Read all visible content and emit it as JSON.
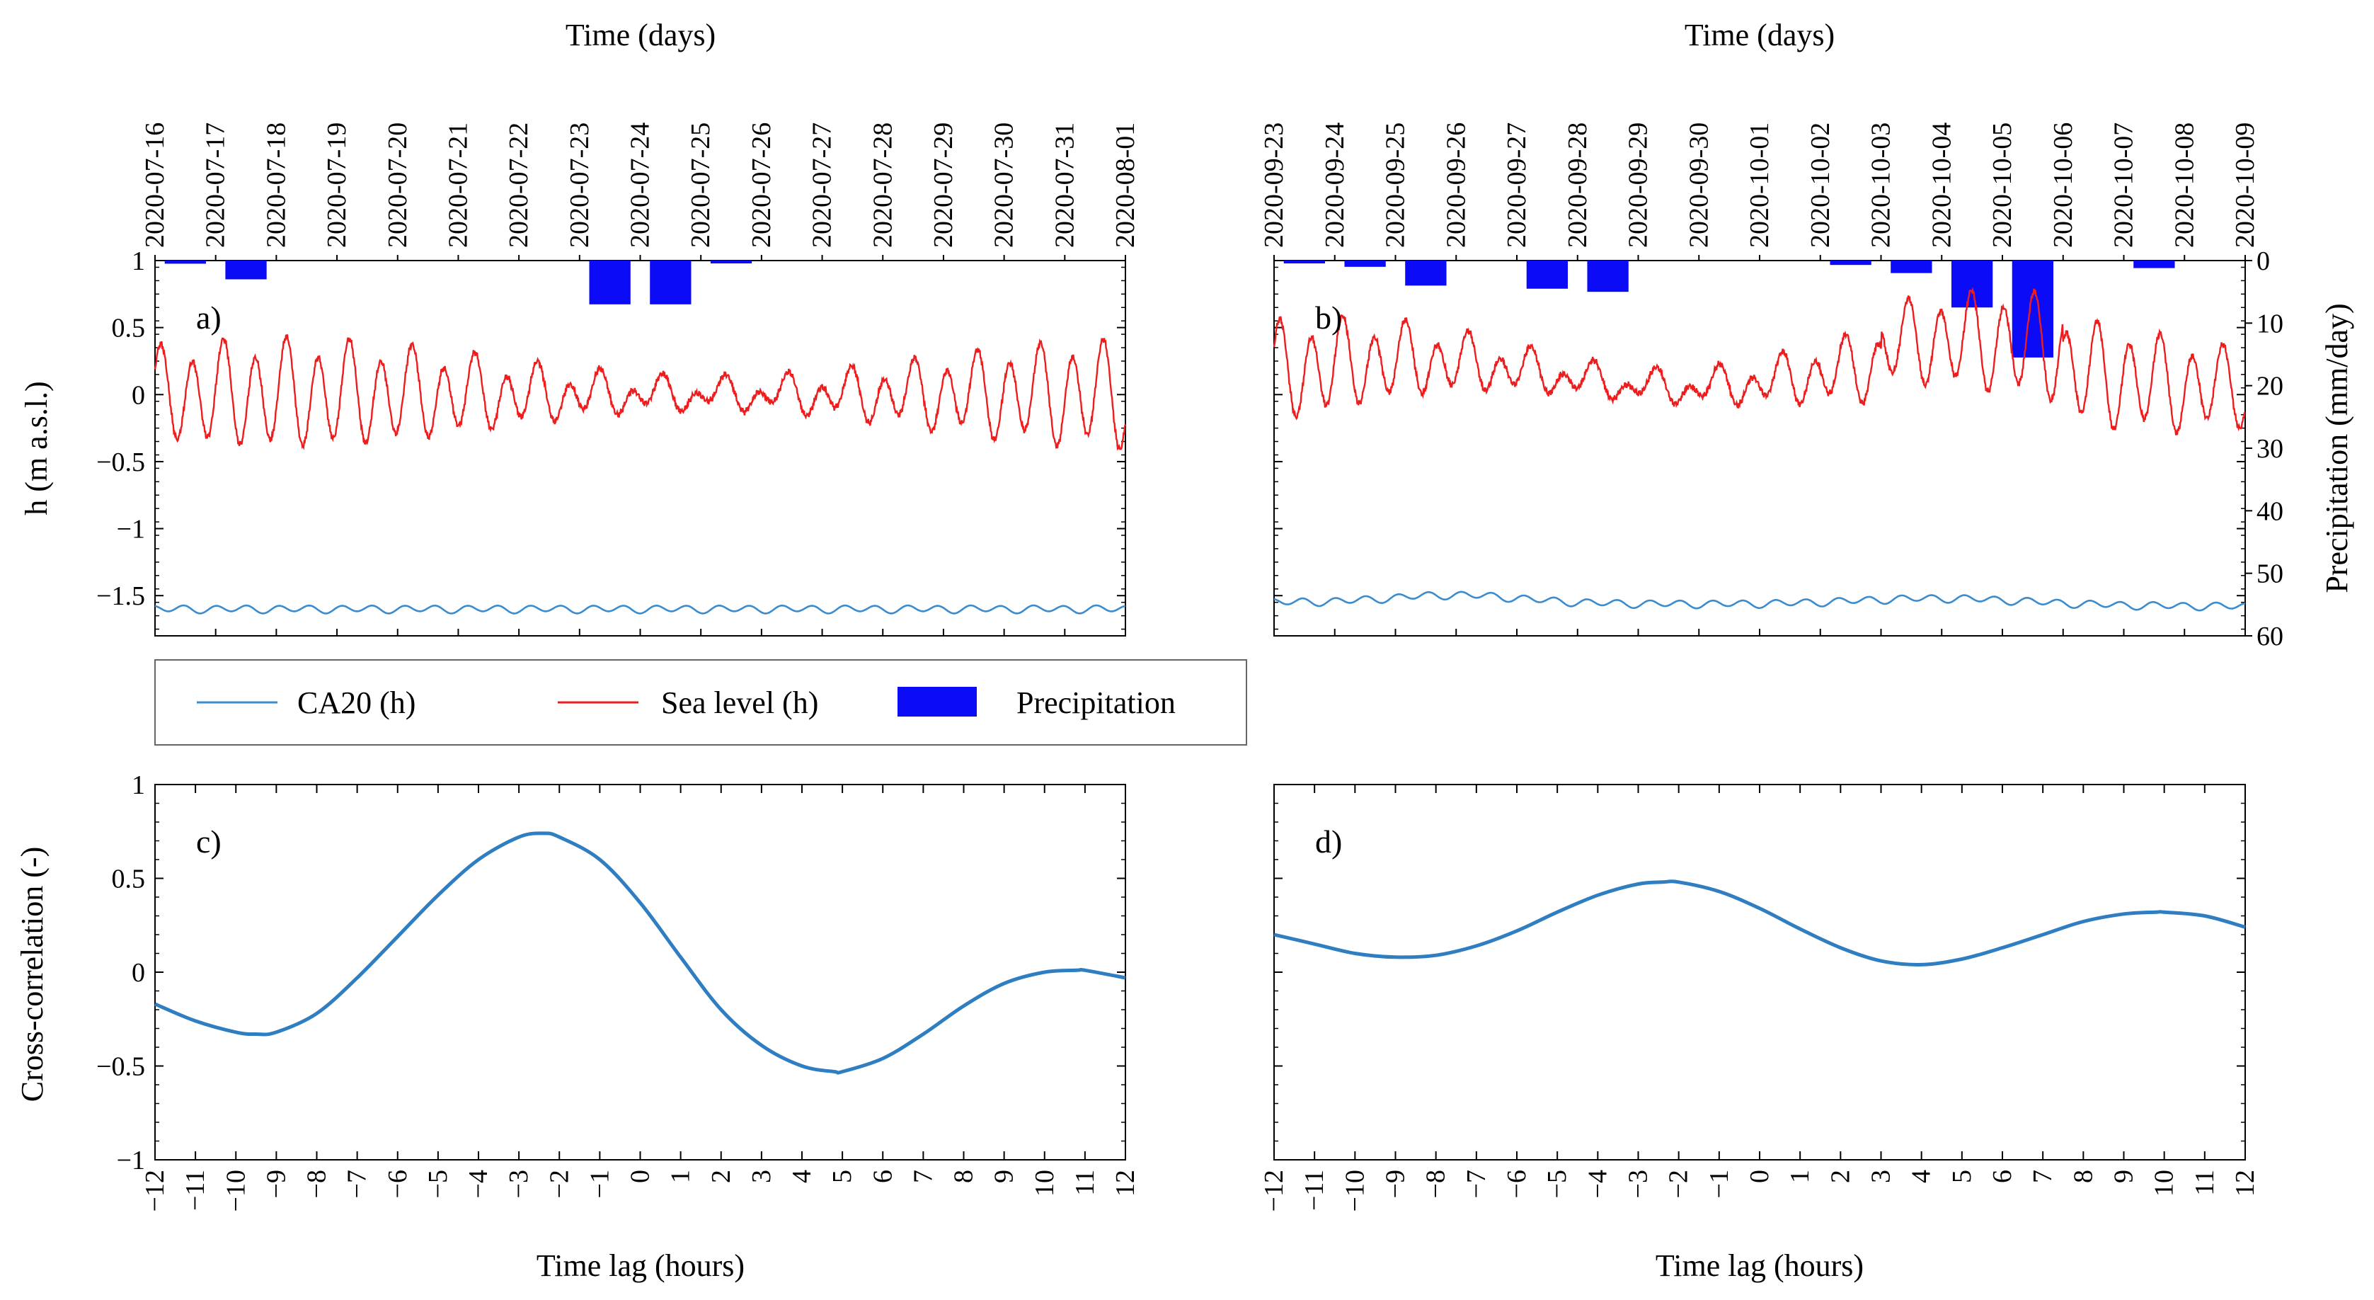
{
  "colors": {
    "ca20": "#3a8ccf",
    "sea": "#ee1c1c",
    "precip": "#0b0bf5",
    "xcorr": "#2f7ec2",
    "axis": "#000000"
  },
  "legend": {
    "ca20": "CA20 (h)",
    "sea": "Sea level (h)",
    "precip": "Precipitation"
  },
  "chart_data": [
    {
      "panel": "a)",
      "type": "line",
      "xlabel": "Time (days)",
      "ylabel": "h (m a.s.l.)",
      "x_ticks": [
        "2020-07-16",
        "2020-07-17",
        "2020-07-18",
        "2020-07-19",
        "2020-07-20",
        "2020-07-21",
        "2020-07-22",
        "2020-07-23",
        "2020-07-24",
        "2020-07-25",
        "2020-07-26",
        "2020-07-27",
        "2020-07-28",
        "2020-07-29",
        "2020-07-30",
        "2020-07-31",
        "2020-08-01"
      ],
      "ylim": [
        -1.8,
        1
      ],
      "y_ticks": [
        "1",
        "0.5",
        "0",
        "−0.5",
        "−1",
        "−1.5"
      ],
      "series": [
        {
          "name": "Sea level (h)",
          "mean": 0.0,
          "amp_diurnal": 0.08,
          "amp_semidiurnal": 0.31,
          "envelope_mod": 0.45,
          "extremes": {
            "max": 0.52,
            "min": -0.57
          }
        },
        {
          "name": "CA20 (h)",
          "mean": -1.6,
          "amp": 0.03,
          "range": [
            -1.65,
            -1.55
          ]
        }
      ],
      "precipitation_mm_day": [
        {
          "date": "2020-07-16",
          "value": 0.5
        },
        {
          "date": "2020-07-17",
          "value": 3
        },
        {
          "date": "2020-07-23",
          "value": 7
        },
        {
          "date": "2020-07-24",
          "value": 7
        },
        {
          "date": "2020-07-25",
          "value": 0.3
        }
      ]
    },
    {
      "panel": "b)",
      "type": "line",
      "xlabel": "Time (days)",
      "ylabel": "Precipitation (mm/day)",
      "x_ticks": [
        "2020-09-23",
        "2020-09-24",
        "2020-09-25",
        "2020-09-26",
        "2020-09-27",
        "2020-09-28",
        "2020-09-29",
        "2020-09-30",
        "2020-10-01",
        "2020-10-02",
        "2020-10-03",
        "2020-10-04",
        "2020-10-05",
        "2020-10-06",
        "2020-10-07",
        "2020-10-08",
        "2020-10-09"
      ],
      "ylim": [
        -1.8,
        1
      ],
      "y2lim": [
        0,
        60
      ],
      "y2_ticks": [
        "0",
        "10",
        "20",
        "30",
        "40",
        "50",
        "60"
      ],
      "series": [
        {
          "name": "Sea level (h)",
          "mean": 0.15,
          "amp_semidiurnal": 0.3,
          "extremes": {
            "max": 1.0,
            "min": -0.32
          }
        },
        {
          "name": "CA20 (h)",
          "mean": -1.55,
          "range": [
            -1.6,
            -1.47
          ]
        }
      ],
      "precipitation_mm_day": [
        {
          "date": "2020-09-23",
          "value": 0.3
        },
        {
          "date": "2020-09-24",
          "value": 1
        },
        {
          "date": "2020-09-25",
          "value": 4
        },
        {
          "date": "2020-09-27",
          "value": 4.5
        },
        {
          "date": "2020-09-28",
          "value": 5
        },
        {
          "date": "2020-10-02",
          "value": 0.7
        },
        {
          "date": "2020-10-03",
          "value": 2
        },
        {
          "date": "2020-10-04",
          "value": 7.5
        },
        {
          "date": "2020-10-05",
          "value": 15.5
        },
        {
          "date": "2020-10-07",
          "value": 1.2
        },
        {
          "date": "2020-10-09",
          "value": 0.3
        }
      ]
    },
    {
      "panel": "c)",
      "type": "line",
      "xlabel": "Time lag (hours)",
      "ylabel": "Cross-correlation (-)",
      "xlim": [
        -12,
        12
      ],
      "ylim": [
        -1,
        1
      ],
      "x": [
        -12,
        -11,
        -10,
        -9.5,
        -9,
        -8,
        -7,
        -6,
        -5,
        -4,
        -3,
        -2.4,
        -2,
        -1,
        0,
        1,
        2,
        3,
        4,
        4.8,
        5,
        6,
        7,
        8,
        9,
        10,
        10.8,
        11,
        12
      ],
      "y": [
        -0.17,
        -0.26,
        -0.32,
        -0.33,
        -0.32,
        -0.22,
        -0.03,
        0.19,
        0.41,
        0.6,
        0.72,
        0.74,
        0.72,
        0.6,
        0.37,
        0.08,
        -0.2,
        -0.39,
        -0.5,
        -0.53,
        -0.53,
        -0.46,
        -0.33,
        -0.18,
        -0.06,
        0.0,
        0.01,
        0.01,
        -0.03
      ]
    },
    {
      "panel": "d)",
      "type": "line",
      "xlim": [
        -12,
        12
      ],
      "ylim": [
        -1,
        1
      ],
      "x": [
        -12,
        -11,
        -10,
        -9,
        -8,
        -7,
        -6,
        -5,
        -4,
        -3,
        -2.4,
        -2,
        -1,
        0,
        1,
        2,
        3,
        4,
        5,
        6,
        7,
        8,
        9,
        9.8,
        10,
        11,
        12
      ],
      "y": [
        0.2,
        0.15,
        0.1,
        0.08,
        0.09,
        0.14,
        0.22,
        0.32,
        0.41,
        0.47,
        0.48,
        0.48,
        0.43,
        0.34,
        0.23,
        0.13,
        0.06,
        0.04,
        0.07,
        0.13,
        0.2,
        0.27,
        0.31,
        0.32,
        0.32,
        0.3,
        0.24
      ]
    }
  ]
}
